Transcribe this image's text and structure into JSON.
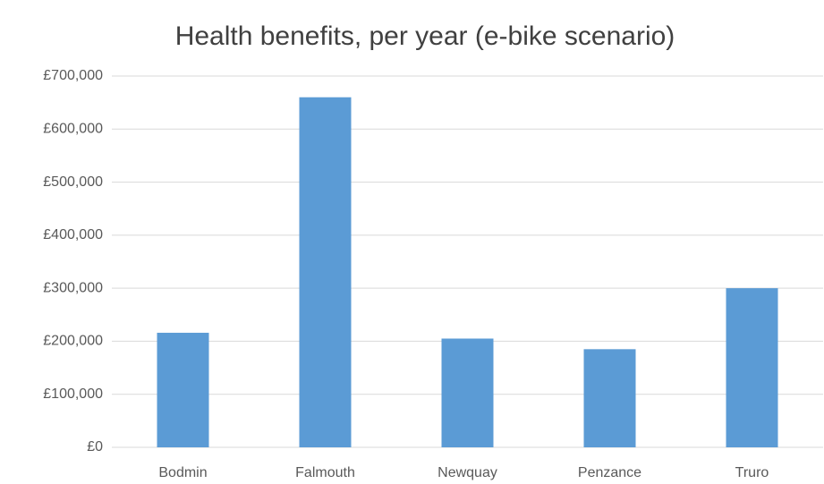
{
  "chart_data": {
    "type": "bar",
    "title": "Health benefits, per year (e-bike scenario)",
    "categories": [
      "Bodmin",
      "Falmouth",
      "Newquay",
      "Penzance",
      "Truro"
    ],
    "values": [
      216000,
      660000,
      205000,
      185000,
      300000
    ],
    "color": "#5b9bd5",
    "ylim": [
      0,
      700000
    ],
    "yticks": [
      {
        "value": 0,
        "label": "£0"
      },
      {
        "value": 100000,
        "label": "£100,000"
      },
      {
        "value": 200000,
        "label": "£200,000"
      },
      {
        "value": 300000,
        "label": "£300,000"
      },
      {
        "value": 400000,
        "label": "£400,000"
      },
      {
        "value": 500000,
        "label": "£500,000"
      },
      {
        "value": 600000,
        "label": "£600,000"
      },
      {
        "value": 700000,
        "label": "£700,000"
      }
    ],
    "grid": true
  }
}
